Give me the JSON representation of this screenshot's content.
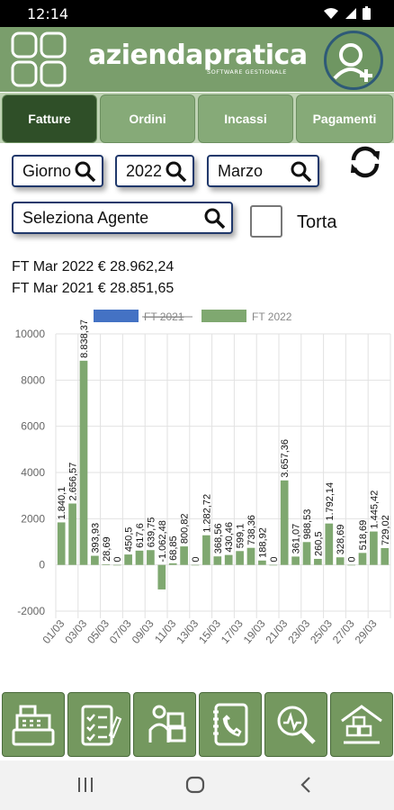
{
  "status_bar": {
    "time": "12:14"
  },
  "header": {
    "brand": "aziendapratica",
    "brand_sub": "SOFTWARE GESTIONALE"
  },
  "tabs": [
    {
      "label": "Fatture",
      "active": true
    },
    {
      "label": "Ordini",
      "active": false
    },
    {
      "label": "Incassi",
      "active": false
    },
    {
      "label": "Pagamenti",
      "active": false
    }
  ],
  "filters": {
    "granularity": "Giorno",
    "year": "2022",
    "month": "Marzo",
    "agent": "Seleziona Agente",
    "torta_label": "Torta"
  },
  "summary": {
    "current": "FT Mar 2022 € 28.962,24",
    "previous": "FT Mar 2021 € 28.851,65"
  },
  "colors": {
    "accent": "#7a9e6c",
    "series_2021": "#4472c4",
    "series_2022": "#7fa870",
    "tab_active": "#2f4f28"
  },
  "chart_data": {
    "type": "bar",
    "legend_position": "top",
    "grid": true,
    "ylim": [
      -2000,
      10000
    ],
    "y_ticks": [
      "10000",
      "8000",
      "6000",
      "4000",
      "2000",
      "0",
      "-2000"
    ],
    "x_tick_labels": [
      "01/03",
      "03/03",
      "05/03",
      "07/03",
      "09/03",
      "11/03",
      "13/03",
      "15/03",
      "17/03",
      "19/03",
      "21/03",
      "23/03",
      "25/03",
      "27/03",
      "29/03"
    ],
    "series": [
      {
        "name": "FT 2021",
        "hidden": true,
        "values": []
      },
      {
        "name": "FT 2022",
        "hidden": false,
        "values": [
          1840.1,
          2656.57,
          8838.37,
          393.93,
          28.69,
          0,
          450.5,
          617.6,
          639.75,
          -1062.48,
          68.85,
          800.82,
          0,
          1282.72,
          368.56,
          430.46,
          599.1,
          738.36,
          188.92,
          0,
          3657.36,
          361.07,
          988.53,
          260.5,
          1792.14,
          328.69,
          0,
          518.69,
          1445.42,
          729.02
        ],
        "labels": [
          "1.840,1",
          "2.656,57",
          "8.838,37",
          "393,93",
          "28,69",
          "0",
          "450,5",
          "617,6",
          "639,75",
          "-1.062,48",
          "68,85",
          "800,82",
          "0",
          "1.282,72",
          "368,56",
          "430,46",
          "599,1",
          "738,36",
          "188,92",
          "0",
          "3.657,36",
          "361,07",
          "988,53",
          "260,5",
          "1.792,14",
          "328,69",
          "0",
          "518,69",
          "1.445,42",
          "729,02"
        ]
      }
    ]
  },
  "bottom_nav": [
    {
      "name": "cash-register-icon"
    },
    {
      "name": "checklist-icon"
    },
    {
      "name": "delivery-icon"
    },
    {
      "name": "phonebook-icon"
    },
    {
      "name": "analysis-icon"
    },
    {
      "name": "warehouse-icon"
    }
  ]
}
